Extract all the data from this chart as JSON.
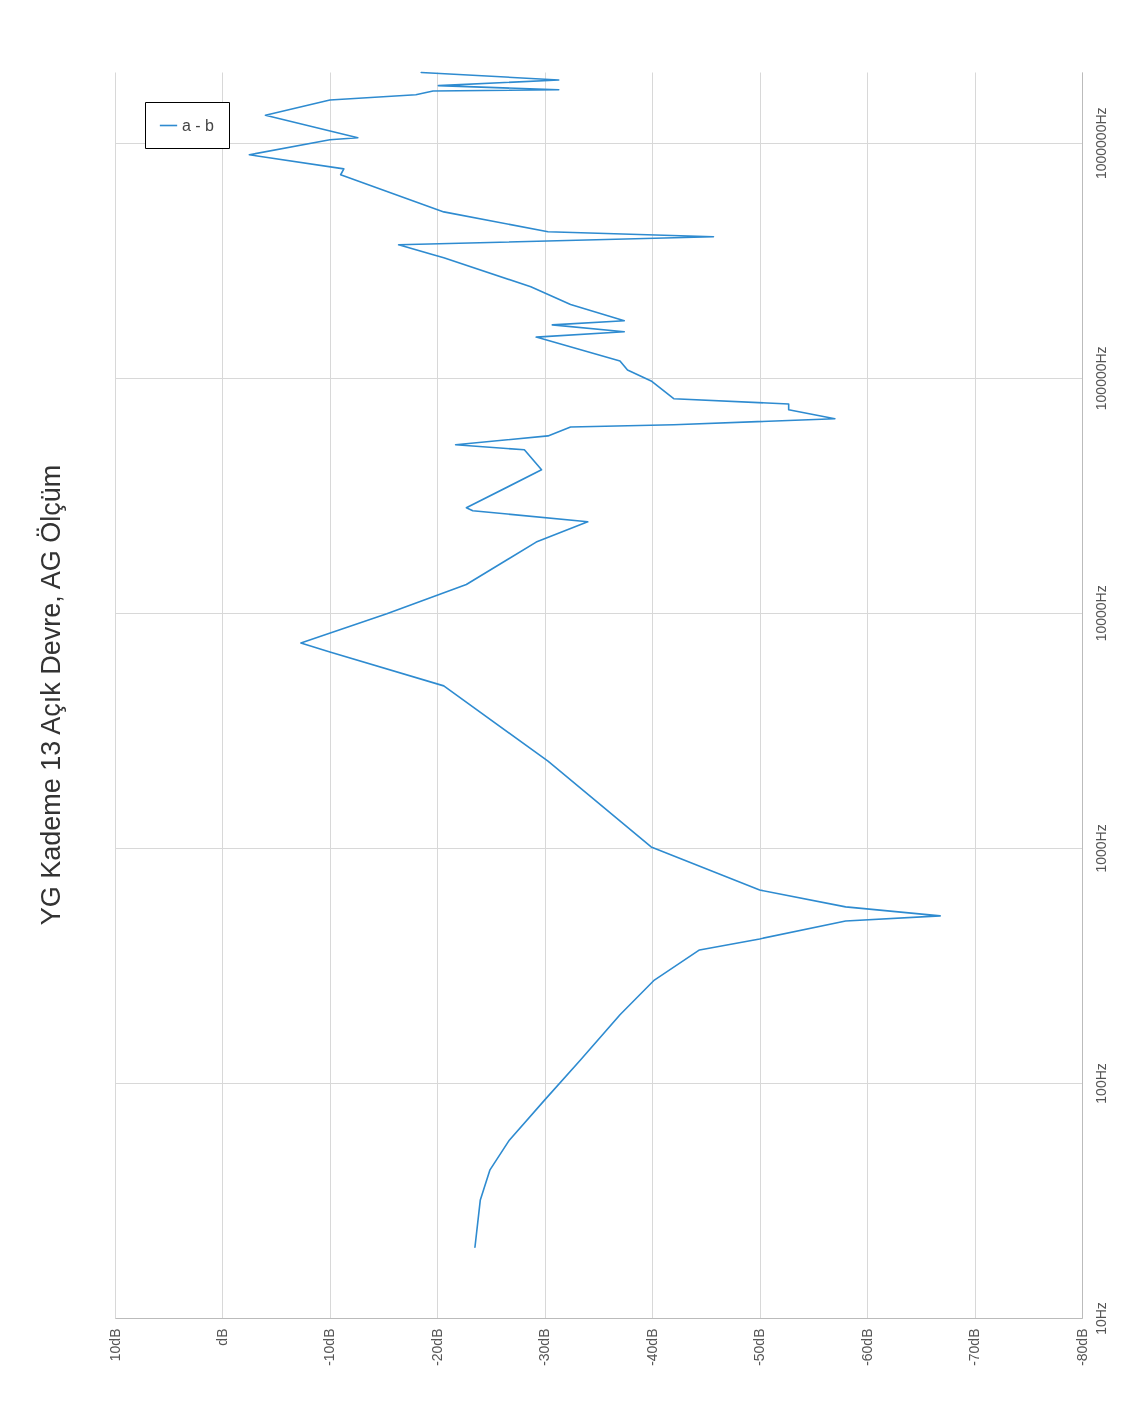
{
  "chart_data": {
    "type": "line",
    "title": "YG Kademe 13 Açık Devre, AG Ölçüm",
    "log": "y",
    "grid": true,
    "legend": "top left",
    "line_style": "solid",
    "xlim": [
      10,
      -80
    ],
    "ylim": [
      10,
      2000000
    ],
    "yticks": [
      {
        "value": 10,
        "label": "10Hz"
      },
      {
        "value": 100,
        "label": "100Hz"
      },
      {
        "value": 1000,
        "label": "1000Hz"
      },
      {
        "value": 10000,
        "label": "10000Hz"
      },
      {
        "value": 100000,
        "label": "100000Hz"
      },
      {
        "value": 1000000,
        "label": "1000000Hz"
      }
    ],
    "xticks": [
      {
        "value": 10,
        "label": "10dB"
      },
      {
        "value": 0,
        "label": "dB"
      },
      {
        "value": -10,
        "label": "-10dB"
      },
      {
        "value": -20,
        "label": "-20dB"
      },
      {
        "value": -30,
        "label": "-30dB"
      },
      {
        "value": -40,
        "label": "-40dB"
      },
      {
        "value": -50,
        "label": "-50dB"
      },
      {
        "value": -60,
        "label": "-60dB"
      },
      {
        "value": -70,
        "label": "-70dB"
      },
      {
        "value": -80,
        "label": "-80dB"
      }
    ],
    "series": [
      {
        "name": "a - b",
        "color": "#2e8bd0",
        "x": [
          -23.5,
          -24.0,
          -24.9,
          -26.7,
          -30.0,
          -33.3,
          -37.0,
          -40.2,
          -44.4,
          -50.0,
          -58.0,
          -66.8,
          -58.0,
          -50.0,
          -39.9,
          -30.3,
          -20.6,
          -10.0,
          -7.3,
          -15.3,
          -22.7,
          -29.2,
          -34.0,
          -23.3,
          -22.7,
          -29.7,
          -28.1,
          -21.7,
          -30.3,
          -32.4,
          -42.0,
          -57.0,
          -52.7,
          -52.7,
          -42.0,
          -39.9,
          -37.7,
          -37.0,
          -29.2,
          -37.4,
          -30.7,
          -37.4,
          -32.4,
          -28.7,
          -20.6,
          -16.4,
          -45.7,
          -30.3,
          -20.6,
          -11.0,
          -11.3,
          -2.5,
          -10.0,
          -12.6,
          -4.0,
          -10.0,
          -18.0,
          -19.6,
          -31.3,
          -20.1,
          -31.3,
          -18.5
        ],
        "values": [
          20,
          31.8,
          42.7,
          57.1,
          84.7,
          125,
          195,
          274,
          368,
          410,
          489,
          514,
          561,
          662,
          1010,
          2340,
          4890,
          6820,
          7450,
          9910,
          13200,
          20000,
          24400,
          27200,
          28000,
          40600,
          49400,
          51900,
          56600,
          61800,
          63100,
          67000,
          73100,
          77400,
          81500,
          97000,
          108000,
          118000,
          149000,
          157000,
          168000,
          175000,
          205000,
          244000,
          324000,
          368000,
          398000,
          418000,
          508000,
          731000,
          774000,
          889000,
          1030000,
          1050000,
          1310000,
          1520000,
          1600000,
          1660000,
          1680000,
          1750000,
          1850000,
          1990000
        ]
      }
    ]
  }
}
